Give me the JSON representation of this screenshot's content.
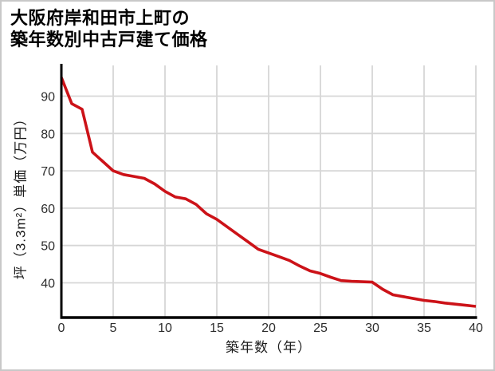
{
  "page": {
    "background": "#ffffff",
    "border_color": "#c8c8c8"
  },
  "title": {
    "line1": "大阪府岸和田市上町の",
    "line2": "築年数別中古戸建て価格"
  },
  "chart_data": {
    "type": "line",
    "title": "大阪府岸和田市上町の築年数別中古戸建て価格",
    "xlabel": "築年数（年）",
    "ylabel": "坪（3.3m²）単価（万円）",
    "x": [
      0,
      1,
      2,
      3,
      4,
      5,
      6,
      7,
      8,
      9,
      10,
      11,
      12,
      13,
      14,
      15,
      16,
      17,
      18,
      19,
      20,
      21,
      22,
      23,
      24,
      25,
      26,
      27,
      28,
      29,
      30,
      31,
      32,
      33,
      34,
      35,
      36,
      37,
      38,
      39,
      40
    ],
    "values": [
      95,
      88,
      86.5,
      75,
      72.5,
      70,
      69,
      68.5,
      68,
      66.5,
      64.5,
      63,
      62.5,
      61,
      58.5,
      57,
      55,
      53,
      51,
      49,
      48,
      47,
      46,
      44.5,
      43.2,
      42.5,
      41.5,
      40.6,
      40.4,
      40.3,
      40.2,
      38.3,
      36.8,
      36.3,
      35.8,
      35.3,
      35,
      34.6,
      34.3,
      34,
      33.7
    ],
    "x_ticks": [
      0,
      5,
      10,
      15,
      20,
      25,
      30,
      35,
      40
    ],
    "y_ticks": [
      40,
      50,
      60,
      70,
      80,
      90
    ],
    "xlim": [
      0,
      40
    ],
    "ylim": [
      31,
      98.5
    ],
    "grid": true,
    "legend_position": "none",
    "line_color": "#cc1218",
    "grid_color": "#d6d6d6",
    "axis_color": "#000000",
    "tick_label_color": "#2d2d2d"
  }
}
